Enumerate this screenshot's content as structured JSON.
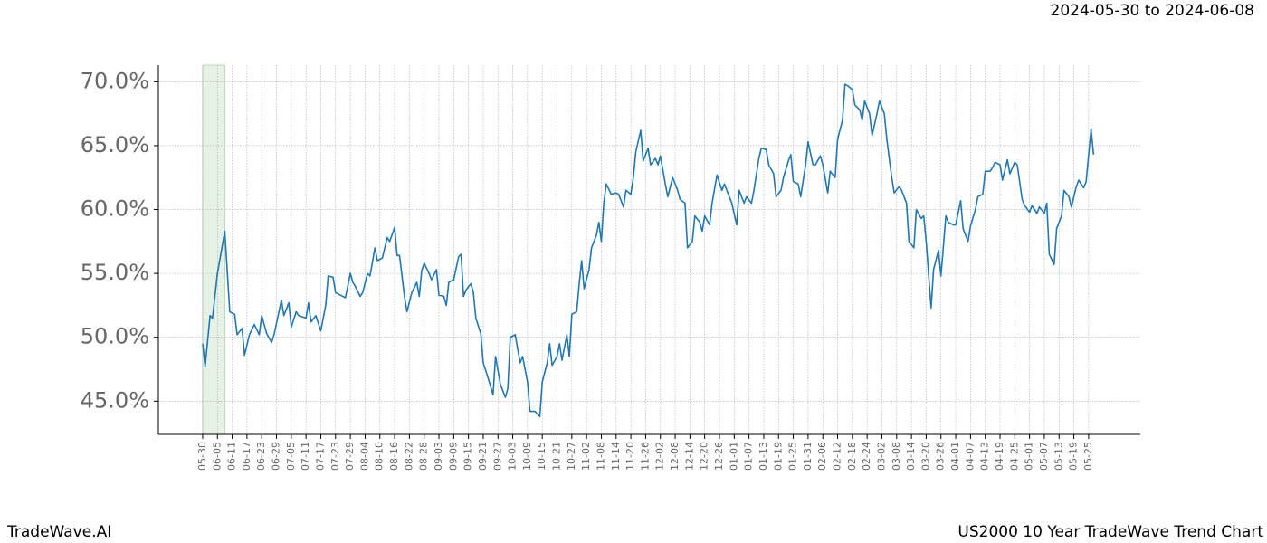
{
  "chart_data": {
    "type": "line",
    "subtitle": "2024-05-30 to 2024-06-08",
    "footer_left": "TradeWave.AI",
    "footer_right": "US2000 10 Year TradeWave Trend Chart",
    "color": "#1f77b4",
    "highlight_x": [
      0,
      9
    ],
    "highlight_color": "#e6f2e6",
    "grid": true,
    "x": [
      0,
      1,
      3,
      4,
      6,
      9,
      11,
      13,
      14,
      16,
      17,
      19,
      21,
      23,
      24,
      26,
      28,
      29,
      32,
      33,
      35,
      36,
      38,
      39,
      42,
      43,
      44,
      46,
      48,
      50,
      51,
      53,
      54,
      57,
      58,
      60,
      61,
      62,
      64,
      65,
      67,
      68,
      70,
      71,
      73,
      75,
      76,
      78,
      79,
      80,
      82,
      83,
      85,
      87,
      88,
      89,
      90,
      92,
      93,
      95,
      96,
      98,
      99,
      100,
      102,
      104,
      105,
      106,
      107,
      109,
      110,
      111,
      113,
      114,
      116,
      118,
      119,
      121,
      123,
      124,
      125,
      127,
      129,
      130,
      132,
      133,
      135,
      137,
      138,
      140,
      141,
      142,
      144,
      145,
      146,
      148,
      149,
      150,
      152,
      153,
      154,
      155,
      157,
      158,
      160,
      161,
      162,
      163,
      164,
      166,
      168,
      169,
      171,
      172,
      174,
      175,
      176,
      178,
      179,
      181,
      182,
      184,
      185,
      186,
      188,
      189,
      191,
      193,
      194,
      196,
      197,
      199,
      200,
      202,
      203,
      204,
      206,
      207,
      209,
      211,
      212,
      214,
      215,
      217,
      218,
      220,
      221,
      223,
      224,
      226,
      227,
      229,
      230,
      232,
      233,
      235,
      236,
      238,
      239,
      240,
      242,
      243,
      245,
      246,
      248,
      249,
      251,
      252,
      254,
      255,
      257,
      258,
      260,
      261,
      262,
      264,
      265,
      267,
      268,
      269,
      271,
      272,
      274,
      275,
      277,
      278,
      280,
      281,
      283,
      284,
      286,
      287,
      289,
      290,
      292,
      293,
      294,
      296,
      297,
      299,
      300,
      302,
      303,
      305,
      306,
      308,
      309,
      311,
      312,
      314,
      315,
      317,
      318,
      320,
      321,
      322,
      324,
      325,
      327,
      328,
      330,
      331,
      333,
      334,
      336,
      337,
      339,
      340,
      342,
      343,
      344,
      346,
      347,
      349,
      350,
      352,
      353,
      355,
      356,
      358,
      359,
      361,
      362
    ],
    "values": [
      49.5,
      47.7,
      51.7,
      51.5,
      55,
      58.3,
      52,
      51.8,
      50.2,
      50.7,
      48.6,
      50.2,
      51,
      50.2,
      51.7,
      50.3,
      49.6,
      50.2,
      52.9,
      51.7,
      52.7,
      50.8,
      52,
      51.7,
      51.5,
      52.7,
      51.2,
      51.7,
      50.5,
      52.5,
      54.8,
      54.7,
      53.5,
      53.2,
      53.1,
      55,
      54.3,
      54,
      53.2,
      53.5,
      55,
      54.8,
      57,
      56,
      56.2,
      57.8,
      57.5,
      58.6,
      56.4,
      56.4,
      53.2,
      52,
      53.5,
      54.3,
      53.2,
      55.2,
      55.8,
      55,
      54.5,
      55.3,
      53.3,
      53.2,
      52.5,
      54.3,
      54.5,
      56.3,
      56.5,
      53.2,
      53.7,
      54.2,
      53.5,
      51.5,
      50.3,
      48,
      46.8,
      45.5,
      48.5,
      46.3,
      45.3,
      46,
      50,
      50.2,
      48,
      48.5,
      46.5,
      44.2,
      44.2,
      43.8,
      46.5,
      48,
      49.5,
      47.8,
      48.5,
      49.5,
      48.2,
      50.2,
      48.5,
      51.8,
      52,
      54.2,
      56,
      53.8,
      55.3,
      57,
      58,
      59,
      57.5,
      60.5,
      62,
      61.2,
      61.3,
      61.2,
      60.2,
      61.5,
      61.2,
      62.5,
      64.5,
      66.2,
      63.8,
      64.8,
      63.5,
      64,
      63.5,
      64.2,
      62,
      61,
      62.5,
      61.5,
      60.8,
      60.5,
      57,
      57.5,
      59.5,
      59,
      58.3,
      59.5,
      58.8,
      60.5,
      62.7,
      61.5,
      62,
      61,
      60.5,
      58.8,
      61.5,
      60.5,
      61,
      60.5,
      61.5,
      64,
      64.8,
      64.7,
      63.5,
      62.8,
      61,
      61.5,
      62.5,
      63.8,
      64.3,
      62.2,
      62,
      61,
      63.5,
      65.3,
      63.5,
      63.5,
      64.2,
      63.5,
      61.3,
      63,
      62.5,
      65.5,
      67,
      69.8,
      69.7,
      69.4,
      68.2,
      67.8,
      67,
      68.5,
      67.5,
      65.8,
      67.5,
      68.5,
      67.5,
      65.5,
      62.5,
      61.3,
      61.8,
      61.5,
      60.5,
      57.5,
      57,
      60,
      59.3,
      59.5,
      57.5,
      52.3,
      55.3,
      56.8,
      54.8,
      59.5,
      59,
      58.8,
      58.8,
      60.7,
      58.5,
      57.5,
      58.7,
      60,
      61,
      61.2,
      63,
      63,
      63.3,
      63.7,
      63.5,
      62.3,
      63.9,
      62.8,
      63.7,
      63.5,
      60.8,
      60.3,
      59.8,
      60.3,
      59.7,
      60.2,
      59.7,
      60.5,
      56.5,
      55.7,
      58.5,
      59.5,
      61.5,
      61,
      60.2,
      61.8,
      62.3,
      61.7,
      62.2,
      66.3,
      64.3
    ],
    "xlim": [
      -18,
      381
    ],
    "xticks": [
      {
        "value": 0,
        "label": "05-30"
      },
      {
        "value": 6,
        "label": "06-05"
      },
      {
        "value": 12,
        "label": "06-11"
      },
      {
        "value": 18,
        "label": "06-17"
      },
      {
        "value": 24,
        "label": "06-23"
      },
      {
        "value": 30,
        "label": "06-29"
      },
      {
        "value": 36,
        "label": "07-05"
      },
      {
        "value": 42,
        "label": "07-11"
      },
      {
        "value": 48,
        "label": "07-17"
      },
      {
        "value": 54,
        "label": "07-23"
      },
      {
        "value": 60,
        "label": "07-29"
      },
      {
        "value": 66,
        "label": "08-04"
      },
      {
        "value": 72,
        "label": "08-10"
      },
      {
        "value": 78,
        "label": "08-16"
      },
      {
        "value": 84,
        "label": "08-22"
      },
      {
        "value": 90,
        "label": "08-28"
      },
      {
        "value": 96,
        "label": "09-03"
      },
      {
        "value": 102,
        "label": "09-09"
      },
      {
        "value": 108,
        "label": "09-15"
      },
      {
        "value": 114,
        "label": "09-21"
      },
      {
        "value": 120,
        "label": "09-27"
      },
      {
        "value": 126,
        "label": "10-03"
      },
      {
        "value": 132,
        "label": "10-09"
      },
      {
        "value": 138,
        "label": "10-15"
      },
      {
        "value": 144,
        "label": "10-21"
      },
      {
        "value": 150,
        "label": "10-27"
      },
      {
        "value": 156,
        "label": "11-02"
      },
      {
        "value": 162,
        "label": "11-08"
      },
      {
        "value": 168,
        "label": "11-14"
      },
      {
        "value": 174,
        "label": "11-20"
      },
      {
        "value": 180,
        "label": "11-26"
      },
      {
        "value": 186,
        "label": "12-02"
      },
      {
        "value": 192,
        "label": "12-08"
      },
      {
        "value": 198,
        "label": "12-14"
      },
      {
        "value": 204,
        "label": "12-20"
      },
      {
        "value": 210,
        "label": "12-26"
      },
      {
        "value": 216,
        "label": "01-01"
      },
      {
        "value": 222,
        "label": "01-07"
      },
      {
        "value": 228,
        "label": "01-13"
      },
      {
        "value": 234,
        "label": "01-19"
      },
      {
        "value": 240,
        "label": "01-25"
      },
      {
        "value": 246,
        "label": "01-31"
      },
      {
        "value": 252,
        "label": "02-06"
      },
      {
        "value": 258,
        "label": "02-12"
      },
      {
        "value": 264,
        "label": "02-18"
      },
      {
        "value": 270,
        "label": "02-24"
      },
      {
        "value": 276,
        "label": "03-02"
      },
      {
        "value": 282,
        "label": "03-08"
      },
      {
        "value": 288,
        "label": "03-14"
      },
      {
        "value": 294,
        "label": "03-20"
      },
      {
        "value": 300,
        "label": "03-26"
      },
      {
        "value": 306,
        "label": "04-01"
      },
      {
        "value": 312,
        "label": "04-07"
      },
      {
        "value": 318,
        "label": "04-13"
      },
      {
        "value": 324,
        "label": "04-19"
      },
      {
        "value": 330,
        "label": "04-25"
      },
      {
        "value": 336,
        "label": "05-01"
      },
      {
        "value": 342,
        "label": "05-07"
      },
      {
        "value": 348,
        "label": "05-13"
      },
      {
        "value": 354,
        "label": "05-19"
      },
      {
        "value": 360,
        "label": "05-25"
      }
    ],
    "ylim": [
      42.4,
      71.3
    ],
    "yticks": [
      {
        "value": 45,
        "label": "45.0%"
      },
      {
        "value": 50,
        "label": "50.0%"
      },
      {
        "value": 55,
        "label": "55.0%"
      },
      {
        "value": 60,
        "label": "60.0%"
      },
      {
        "value": 65,
        "label": "65.0%"
      },
      {
        "value": 70,
        "label": "70.0%"
      }
    ]
  }
}
